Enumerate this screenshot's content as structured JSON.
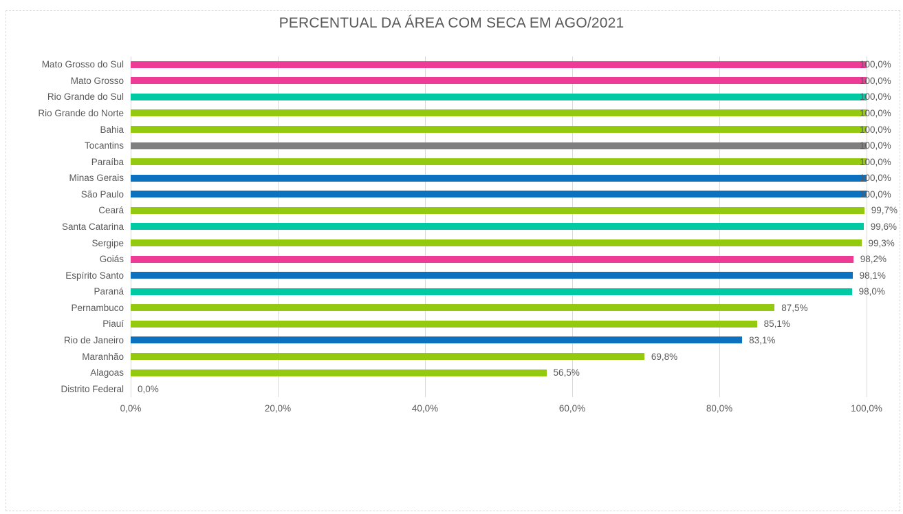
{
  "colors": {
    "pink": "#EE3C96",
    "teal": "#00C9A4",
    "green": "#93C90E",
    "gray": "#7F7F7F",
    "blue": "#0C71BE",
    "text": "#595959",
    "gridline": "#D9D9D9"
  },
  "chart_data": {
    "type": "bar",
    "orientation": "horizontal",
    "title": "PERCENTUAL DA ÁREA COM SECA EM AGO/2021",
    "categories": [
      "Mato Grosso do Sul",
      "Mato Grosso",
      "Rio Grande do Sul",
      "Rio Grande do Norte",
      "Bahia",
      "Tocantins",
      "Paraíba",
      "Minas Gerais",
      "São Paulo",
      "Ceará",
      "Santa Catarina",
      "Sergipe",
      "Goiás",
      "Espírito Santo",
      "Paraná",
      "Pernambuco",
      "Piauí",
      "Rio de Janeiro",
      "Maranhão",
      "Alagoas",
      "Distrito Federal"
    ],
    "values": [
      100.0,
      100.0,
      100.0,
      100.0,
      100.0,
      100.0,
      100.0,
      100.0,
      100.0,
      99.7,
      99.6,
      99.3,
      98.2,
      98.1,
      98.0,
      87.5,
      85.1,
      83.1,
      69.8,
      56.5,
      0.0
    ],
    "value_labels": [
      "100,0%",
      "100,0%",
      "100,0%",
      "100,0%",
      "100,0%",
      "100,0%",
      "100,0%",
      "100,0%",
      "100,0%",
      "99,7%",
      "99,6%",
      "99,3%",
      "98,2%",
      "98,1%",
      "98,0%",
      "87,5%",
      "85,1%",
      "83,1%",
      "69,8%",
      "56,5%",
      "0,0%"
    ],
    "bar_colors": [
      "#EE3C96",
      "#EE3C96",
      "#00C9A4",
      "#93C90E",
      "#93C90E",
      "#7F7F7F",
      "#93C90E",
      "#0C71BE",
      "#0C71BE",
      "#93C90E",
      "#00C9A4",
      "#93C90E",
      "#EE3C96",
      "#0C71BE",
      "#00C9A4",
      "#93C90E",
      "#93C90E",
      "#0C71BE",
      "#93C90E",
      "#93C90E",
      "#93C90E"
    ],
    "x_ticks": [
      "0,0%",
      "20,0%",
      "40,0%",
      "60,0%",
      "80,0%",
      "100,0%"
    ],
    "x_tick_values": [
      0,
      20,
      40,
      60,
      80,
      100
    ],
    "xlim": [
      0,
      100
    ],
    "grid": "vertical",
    "legend": "none",
    "data_label_position": "outside-end"
  }
}
